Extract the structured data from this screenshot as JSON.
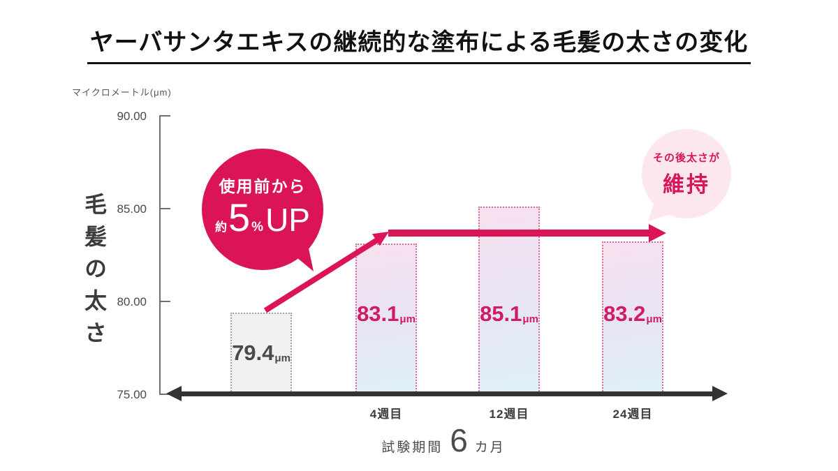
{
  "title": "ヤーバサンタエキスの継続的な塗布による毛髪の太さの変化",
  "chart_data": {
    "type": "bar",
    "title": "ヤーバサンタエキスの継続的な塗布による毛髪の太さの変化",
    "unit_label": "マイクロメートル(μm)",
    "ylabel": "毛髪の太さ",
    "ylim": [
      75,
      90
    ],
    "yticks": [
      "90.00",
      "85.00",
      "80.00",
      "75.00"
    ],
    "categories": [
      "",
      "4週目",
      "12週目",
      "24週目"
    ],
    "values": [
      79.4,
      83.1,
      85.1,
      83.2
    ],
    "bars": [
      {
        "value": 79.4,
        "label": "79.4",
        "unit": "μm",
        "category": "",
        "variant": "before"
      },
      {
        "value": 83.1,
        "label": "83.1",
        "unit": "μm",
        "category": "4週目",
        "variant": "after"
      },
      {
        "value": 85.1,
        "label": "85.1",
        "unit": "μm",
        "category": "12週目",
        "variant": "after"
      },
      {
        "value": 83.2,
        "label": "83.2",
        "unit": "μm",
        "category": "24週目",
        "variant": "after"
      }
    ],
    "caption": {
      "prefix": "試験期間",
      "number": "6",
      "suffix": "カ月"
    },
    "annotations": {
      "up_bubble": {
        "line1": "使用前から",
        "approx": "約",
        "number": "5",
        "percent": "%",
        "suffix": "UP"
      },
      "keep_bubble": {
        "line1": "その後太さが",
        "line2": "維持"
      }
    },
    "legend": "none",
    "grid": false,
    "colors": {
      "accent_crimson": "#da1457",
      "bar_value_label": "#d01c62",
      "bar_after_border": "#e0669b",
      "bar_after_gradient_top": "#f7e1ee",
      "bar_after_gradient_bottom": "#def0f9",
      "bar_before_fill": "#f1f1f1",
      "bar_before_border": "#a5a5a5",
      "keep_bubble_fill": "#fbe7ec",
      "axis_black": "#333333",
      "text_dark": "#3b3b3b"
    }
  }
}
